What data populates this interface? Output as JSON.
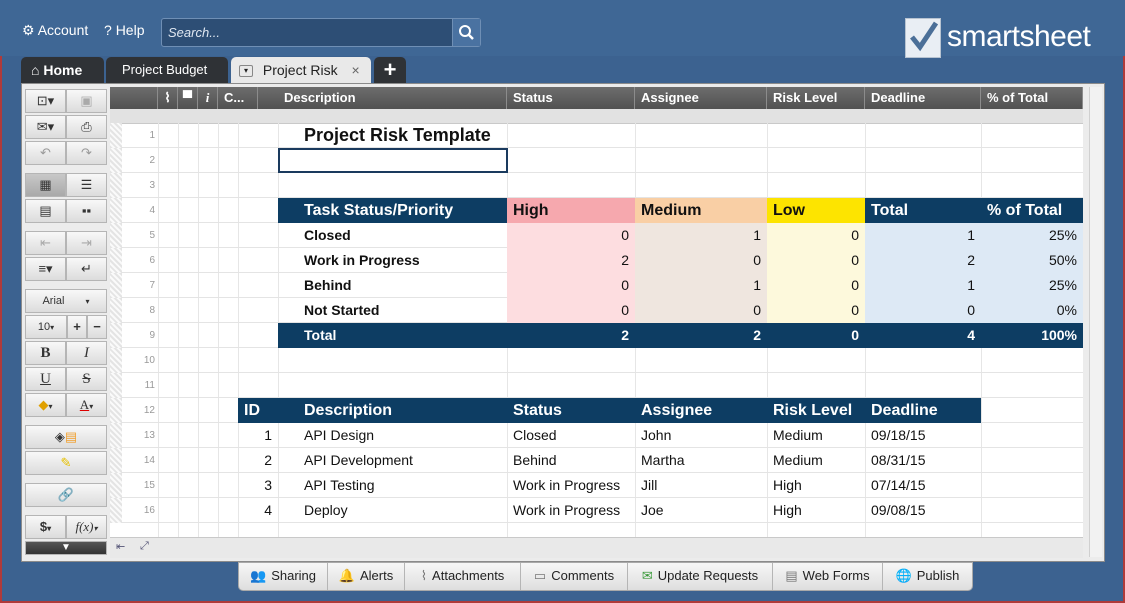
{
  "topbar": {
    "account_label": "Account",
    "help_label": "Help",
    "search_placeholder": "Search...",
    "logo_text": "smartsheet"
  },
  "tabs": {
    "home": "Home",
    "budget": "Project Budget",
    "risk": "Project Risk",
    "add": "+"
  },
  "toolbar": {
    "font_name": "Arial",
    "font_size": "10",
    "bold": "B",
    "italic": "I",
    "underline": "U",
    "strike": "S",
    "text_color": "A",
    "currency": "$",
    "formula": "f(x)"
  },
  "columns": {
    "c": "C...",
    "description": "Description",
    "status": "Status",
    "assignee": "Assignee",
    "risk_level": "Risk Level",
    "deadline": "Deadline",
    "pct_total": "% of Total"
  },
  "row_numbers": [
    "1",
    "2",
    "3",
    "4",
    "5",
    "6",
    "7",
    "8",
    "9",
    "10",
    "11",
    "12",
    "13",
    "14",
    "15",
    "16"
  ],
  "sheet": {
    "title": "Project Risk Template",
    "summary_headers": [
      "Task Status/Priority",
      "High",
      "Medium",
      "Low",
      "Total",
      "% of Total"
    ],
    "summary_rows": [
      {
        "label": "Closed",
        "high": "0",
        "medium": "1",
        "low": "0",
        "total": "1",
        "pct": "25%"
      },
      {
        "label": "Work in Progress",
        "high": "2",
        "medium": "0",
        "low": "0",
        "total": "2",
        "pct": "50%"
      },
      {
        "label": "Behind",
        "high": "0",
        "medium": "1",
        "low": "0",
        "total": "1",
        "pct": "25%"
      },
      {
        "label": "Not Started",
        "high": "0",
        "medium": "0",
        "low": "0",
        "total": "0",
        "pct": "0%"
      }
    ],
    "summary_total": {
      "label": "Total",
      "high": "2",
      "medium": "2",
      "low": "0",
      "total": "4",
      "pct": "100%"
    },
    "task_headers": [
      "ID",
      "Description",
      "Status",
      "Assignee",
      "Risk Level",
      "Deadline"
    ],
    "tasks": [
      {
        "id": "1",
        "description": "API Design",
        "status": "Closed",
        "assignee": "John",
        "risk": "Medium",
        "deadline": "09/18/15"
      },
      {
        "id": "2",
        "description": "API Development",
        "status": "Behind",
        "assignee": "Martha",
        "risk": "Medium",
        "deadline": "08/31/15"
      },
      {
        "id": "3",
        "description": "API Testing",
        "status": "Work in Progress",
        "assignee": "Jill",
        "risk": "High",
        "deadline": "07/14/15"
      },
      {
        "id": "4",
        "description": "Deploy",
        "status": "Work in Progress",
        "assignee": "Joe",
        "risk": "High",
        "deadline": "09/08/15"
      }
    ]
  },
  "bottom": {
    "sharing": "Sharing",
    "alerts": "Alerts",
    "attachments": "Attachments",
    "comments": "Comments",
    "update_requests": "Update Requests",
    "web_forms": "Web Forms",
    "publish": "Publish"
  },
  "colors": {
    "navy": "#0d3d63",
    "high_header": "#f6a8ae",
    "medium_header": "#f9cfa5",
    "low_header": "#fde400",
    "total_header": "#0d3d63",
    "high_cell": "#fddde0",
    "medium_cell": "#efe6df",
    "low_cell": "#fdf9dc",
    "total_cell": "#dde9f5"
  }
}
